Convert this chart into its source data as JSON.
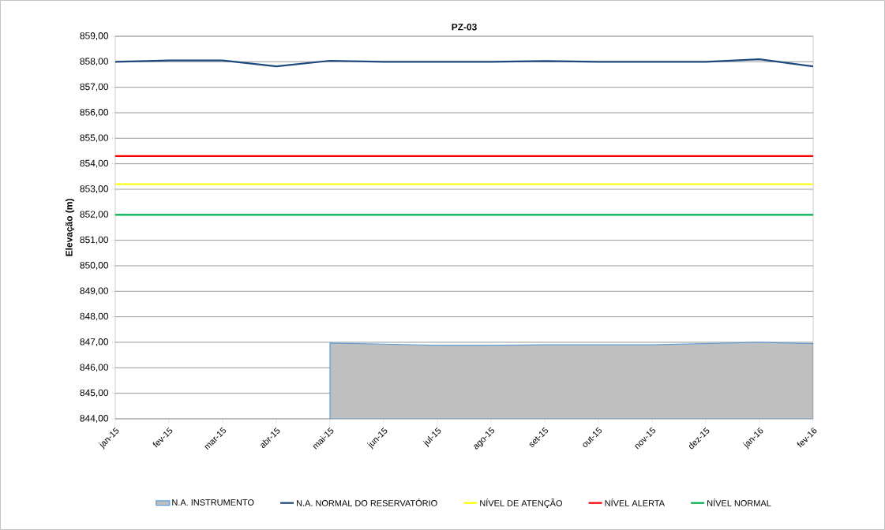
{
  "chart_data": {
    "type": "line",
    "title": "PZ-03",
    "ylabel": "Elevação (m)",
    "categories": [
      "jan-15",
      "fev-15",
      "mar-15",
      "abr-15",
      "mai-15",
      "jun-15",
      "jul-15",
      "ago-15",
      "set-15",
      "out-15",
      "nov-15",
      "dez-15",
      "jan-16",
      "fev-16"
    ],
    "series": [
      {
        "name": "N.A. INSTRUMENTO",
        "type": "area",
        "color": "#bfbfbf",
        "values": [
          null,
          null,
          null,
          null,
          846.97,
          846.93,
          846.88,
          846.88,
          846.9,
          846.9,
          846.9,
          846.95,
          847.0,
          846.95
        ]
      },
      {
        "name": "N.A. NORMAL  DO RESERVATÓRIO",
        "color": "#1f497d",
        "values": [
          858.0,
          858.05,
          858.05,
          857.82,
          858.04,
          858.0,
          858.0,
          858.0,
          858.03,
          858.0,
          858.0,
          858.0,
          858.1,
          857.82
        ]
      },
      {
        "name": "NÍVEL DE ATENÇÃO",
        "color": "#ffff00",
        "values": [
          853.2,
          853.2,
          853.2,
          853.2,
          853.2,
          853.2,
          853.2,
          853.2,
          853.2,
          853.2,
          853.2,
          853.2,
          853.2,
          853.2
        ]
      },
      {
        "name": "NÍVEL ALERTA",
        "color": "#ff0000",
        "values": [
          854.3,
          854.3,
          854.3,
          854.3,
          854.3,
          854.3,
          854.3,
          854.3,
          854.3,
          854.3,
          854.3,
          854.3,
          854.3,
          854.3
        ]
      },
      {
        "name": "NÍVEL NORMAL",
        "color": "#00b050",
        "values": [
          852.0,
          852.0,
          852.0,
          852.0,
          852.0,
          852.0,
          852.0,
          852.0,
          852.0,
          852.0,
          852.0,
          852.0,
          852.0,
          852.0
        ]
      }
    ],
    "ylim": [
      844,
      859
    ],
    "yticks": [
      {
        "value": 844,
        "label": "844,00"
      },
      {
        "value": 845,
        "label": "845,00"
      },
      {
        "value": 846,
        "label": "846,00"
      },
      {
        "value": 847,
        "label": "847,00"
      },
      {
        "value": 848,
        "label": "848,00"
      },
      {
        "value": 849,
        "label": "849,00"
      },
      {
        "value": 850,
        "label": "850,00"
      },
      {
        "value": 851,
        "label": "851,00"
      },
      {
        "value": 852,
        "label": "852,00"
      },
      {
        "value": 853,
        "label": "853,00"
      },
      {
        "value": 854,
        "label": "854,00"
      },
      {
        "value": 855,
        "label": "855,00"
      },
      {
        "value": 856,
        "label": "856,00"
      },
      {
        "value": 857,
        "label": "857,00"
      },
      {
        "value": 858,
        "label": "858,00"
      },
      {
        "value": 859,
        "label": "859,00"
      }
    ],
    "grid": "y",
    "legend": "bottom",
    "marker": "none",
    "line_style": "solid"
  }
}
